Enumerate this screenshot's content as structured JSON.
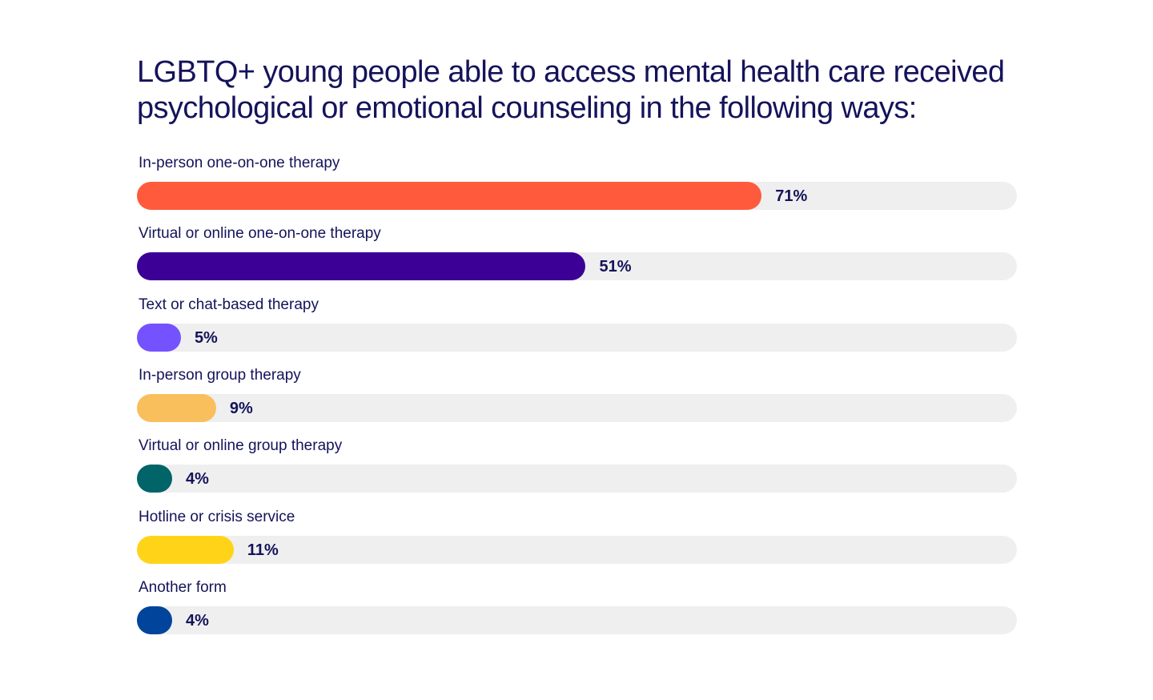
{
  "chart_data": {
    "type": "bar",
    "orientation": "horizontal",
    "title": "LGBTQ+ young people able to access mental health care received psychological or emotional counseling in the following ways:",
    "categories": [
      "In-person one-on-one therapy",
      "Virtual or online one-on-one therapy",
      "Text or chat-based therapy",
      "In-person group therapy",
      "Virtual or online group therapy",
      "Hotline or crisis service",
      "Another form"
    ],
    "values": [
      71,
      51,
      5,
      9,
      4,
      11,
      4
    ],
    "value_labels": [
      "71%",
      "51%",
      "5%",
      "9%",
      "4%",
      "11%",
      "4%"
    ],
    "colors": [
      "#ff5a3c",
      "#3c0097",
      "#7452ff",
      "#f9bf5c",
      "#006468",
      "#ffd418",
      "#00449c"
    ],
    "track_color": "#efefef",
    "xlim": [
      0,
      100
    ],
    "grid": false,
    "legend": "none"
  }
}
